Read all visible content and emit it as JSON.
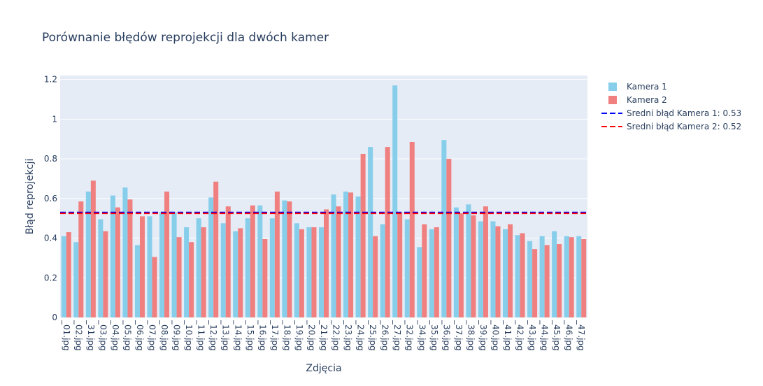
{
  "chart_data": {
    "type": "bar",
    "title": "Porównanie błędów reprojekcji dla dwóch kamer",
    "xlabel": "Zdjęcia",
    "ylabel": "Błąd reprojekcji",
    "ylim": [
      0,
      1.22
    ],
    "yticks": [
      0,
      0.2,
      0.4,
      0.6,
      0.8,
      1,
      1.2
    ],
    "ytick_labels": [
      "0",
      "0.2",
      "0.4",
      "0.6",
      "0.8",
      "1",
      "1.2"
    ],
    "grid": true,
    "legend_position": "top-right",
    "categories": [
      "_01.jpg",
      "_02.jpg",
      "_31.jpg",
      "_03.jpg",
      "_04.jpg",
      "_05.jpg",
      "_06.jpg",
      "_07.jpg",
      "_08.jpg",
      "_09.jpg",
      "_10.jpg",
      "_11.jpg",
      "_12.jpg",
      "_13.jpg",
      "_14.jpg",
      "_15.jpg",
      "_16.jpg",
      "_17.jpg",
      "_18.jpg",
      "_19.jpg",
      "_20.jpg",
      "_21.jpg",
      "_22.jpg",
      "_23.jpg",
      "_24.jpg",
      "_25.jpg",
      "_26.jpg",
      "_27.jpg",
      "_32.jpg",
      "_34.jpg",
      "_35.jpg",
      "_36.jpg",
      "_37.jpg",
      "_38.jpg",
      "_39.jpg",
      "_40.jpg",
      "_41.jpg",
      "_42.jpg",
      "_43.jpg",
      "_44.jpg",
      "_45.jpg",
      "_46.jpg",
      "_47.jpg"
    ],
    "series": [
      {
        "name": "Kamera 1",
        "color": "#87ceeb",
        "values": [
          0.41,
          0.38,
          0.635,
          0.495,
          0.615,
          0.655,
          0.365,
          0.51,
          0.53,
          0.53,
          0.455,
          0.5,
          0.605,
          0.475,
          0.435,
          0.5,
          0.565,
          0.5,
          0.59,
          0.475,
          0.455,
          0.455,
          0.62,
          0.635,
          0.61,
          0.86,
          0.47,
          1.17,
          0.495,
          0.355,
          0.445,
          0.895,
          0.555,
          0.57,
          0.485,
          0.485,
          0.445,
          0.415,
          0.385,
          0.41,
          0.435,
          0.41,
          0.41
        ]
      },
      {
        "name": "Kamera 2",
        "color": "#f08080",
        "values": [
          0.43,
          0.585,
          0.69,
          0.435,
          0.555,
          0.595,
          0.51,
          0.305,
          0.635,
          0.405,
          0.38,
          0.455,
          0.685,
          0.56,
          0.45,
          0.565,
          0.395,
          0.635,
          0.585,
          0.445,
          0.455,
          0.545,
          0.56,
          0.63,
          0.825,
          0.41,
          0.86,
          0.53,
          0.885,
          0.47,
          0.455,
          0.8,
          0.525,
          0.515,
          0.56,
          0.46,
          0.47,
          0.425,
          0.345,
          0.365,
          0.37,
          0.405,
          0.395
        ]
      }
    ],
    "reference_lines": [
      {
        "name": "Sredni błąd Kamera 1: 0.53",
        "value": 0.53,
        "color": "#0000ff",
        "dash": "dash"
      },
      {
        "name": "Sredni błąd Kamera 2: 0.52",
        "value": 0.525,
        "color": "#ff0000",
        "dash": "dash"
      }
    ]
  }
}
